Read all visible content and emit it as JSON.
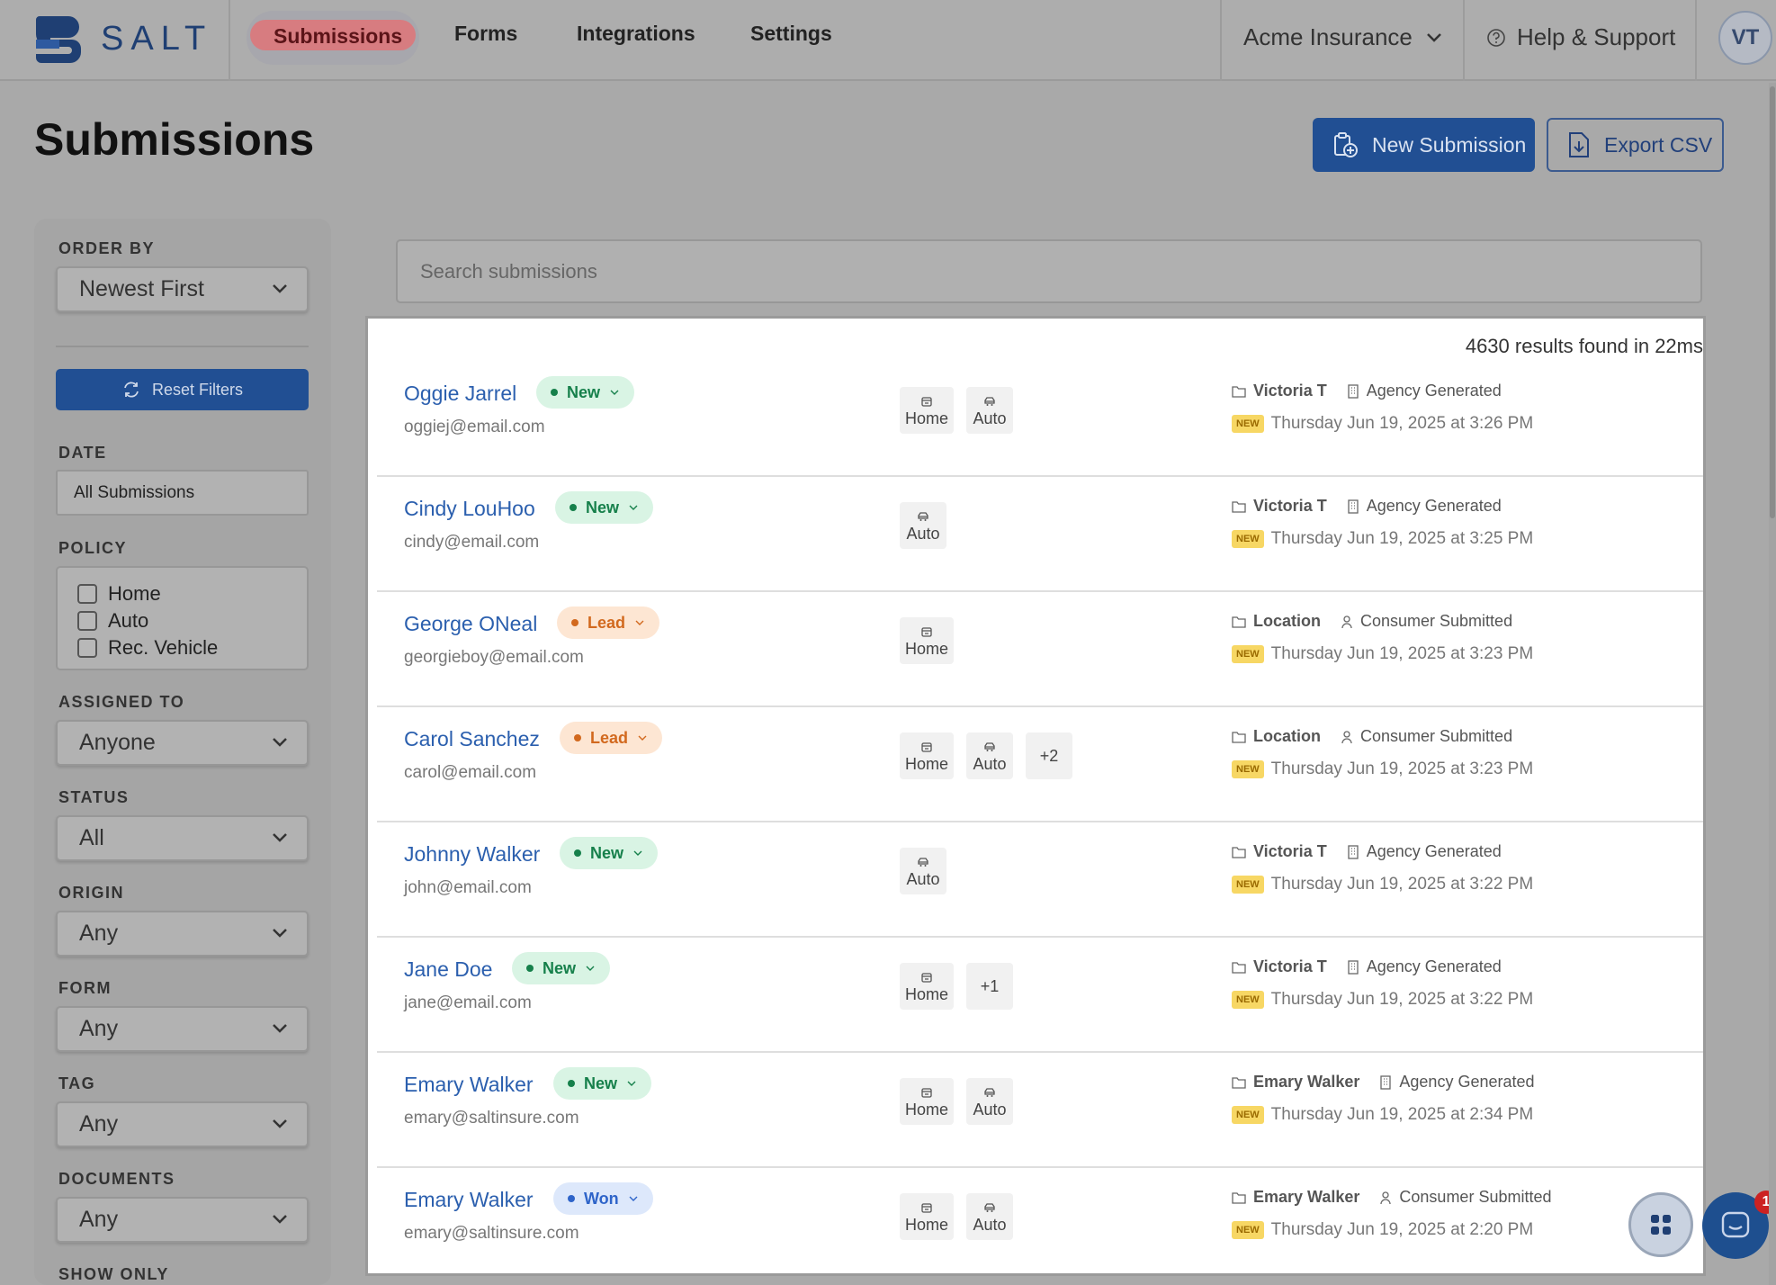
{
  "brand": {
    "name": "SALT"
  },
  "nav": {
    "tabs": [
      {
        "label": "Submissions",
        "active": true
      },
      {
        "label": "Forms"
      },
      {
        "label": "Integrations"
      },
      {
        "label": "Settings"
      }
    ],
    "org": "Acme Insurance",
    "help": "Help & Support",
    "avatar": "VT"
  },
  "page": {
    "title": "Submissions",
    "new_button": "New Submission",
    "export_button": "Export CSV"
  },
  "filters": {
    "order_by_label": "ORDER BY",
    "order_by_value": "Newest First",
    "reset_label": "Reset Filters",
    "date_label": "DATE",
    "date_value": "All Submissions",
    "policy_label": "POLICY",
    "policy_options": [
      "Home",
      "Auto",
      "Rec. Vehicle"
    ],
    "assigned_label": "ASSIGNED TO",
    "assigned_value": "Anyone",
    "status_label": "STATUS",
    "status_value": "All",
    "origin_label": "ORIGIN",
    "origin_value": "Any",
    "form_label": "FORM",
    "form_value": "Any",
    "tag_label": "TAG",
    "tag_value": "Any",
    "documents_label": "DOCUMENTS",
    "documents_value": "Any",
    "show_only_label": "SHOW ONLY"
  },
  "search": {
    "placeholder": "Search submissions"
  },
  "results": {
    "count_text": "4630 results found in 22ms",
    "new_tag": "NEW",
    "rows": [
      {
        "name": "Oggie Jarrel",
        "email": "oggiej@email.com",
        "status": "New",
        "policies": [
          "Home",
          "Auto"
        ],
        "more": "",
        "owner": "Victoria T",
        "source": "Agency Generated",
        "date": "Thursday Jun 19, 2025 at 3:26 PM"
      },
      {
        "name": "Cindy LouHoo",
        "email": "cindy@email.com",
        "status": "New",
        "policies": [
          "Auto"
        ],
        "more": "",
        "owner": "Victoria T",
        "source": "Agency Generated",
        "date": "Thursday Jun 19, 2025 at 3:25 PM"
      },
      {
        "name": "George ONeal",
        "email": "georgieboy@email.com",
        "status": "Lead",
        "policies": [
          "Home"
        ],
        "more": "",
        "owner": "Location",
        "source": "Consumer Submitted",
        "date": "Thursday Jun 19, 2025 at 3:23 PM"
      },
      {
        "name": "Carol Sanchez",
        "email": "carol@email.com",
        "status": "Lead",
        "policies": [
          "Home",
          "Auto"
        ],
        "more": "+2",
        "owner": "Location",
        "source": "Consumer Submitted",
        "date": "Thursday Jun 19, 2025 at 3:23 PM"
      },
      {
        "name": "Johnny Walker",
        "email": "john@email.com",
        "status": "New",
        "policies": [
          "Auto"
        ],
        "more": "",
        "owner": "Victoria T",
        "source": "Agency Generated",
        "date": "Thursday Jun 19, 2025 at 3:22 PM"
      },
      {
        "name": "Jane Doe",
        "email": "jane@email.com",
        "status": "New",
        "policies": [
          "Home"
        ],
        "more": "+1",
        "owner": "Victoria T",
        "source": "Agency Generated",
        "date": "Thursday Jun 19, 2025 at 3:22 PM"
      },
      {
        "name": "Emary Walker",
        "email": "emary@saltinsure.com",
        "status": "New",
        "policies": [
          "Home",
          "Auto"
        ],
        "more": "",
        "owner": "Emary Walker",
        "source": "Agency Generated",
        "date": "Thursday Jun 19, 2025 at 2:34 PM"
      },
      {
        "name": "Emary Walker",
        "email": "emary@saltinsure.com",
        "status": "Won",
        "policies": [
          "Home",
          "Auto"
        ],
        "more": "",
        "owner": "Emary Walker",
        "source": "Consumer Submitted",
        "date": "Thursday Jun 19, 2025 at 2:20 PM"
      }
    ]
  },
  "support": {
    "unread": "1"
  },
  "colors": {
    "primary": "#214f93",
    "link": "#2b5fae",
    "new": "#16804b",
    "lead": "#d2691e",
    "won": "#2e64c9"
  }
}
